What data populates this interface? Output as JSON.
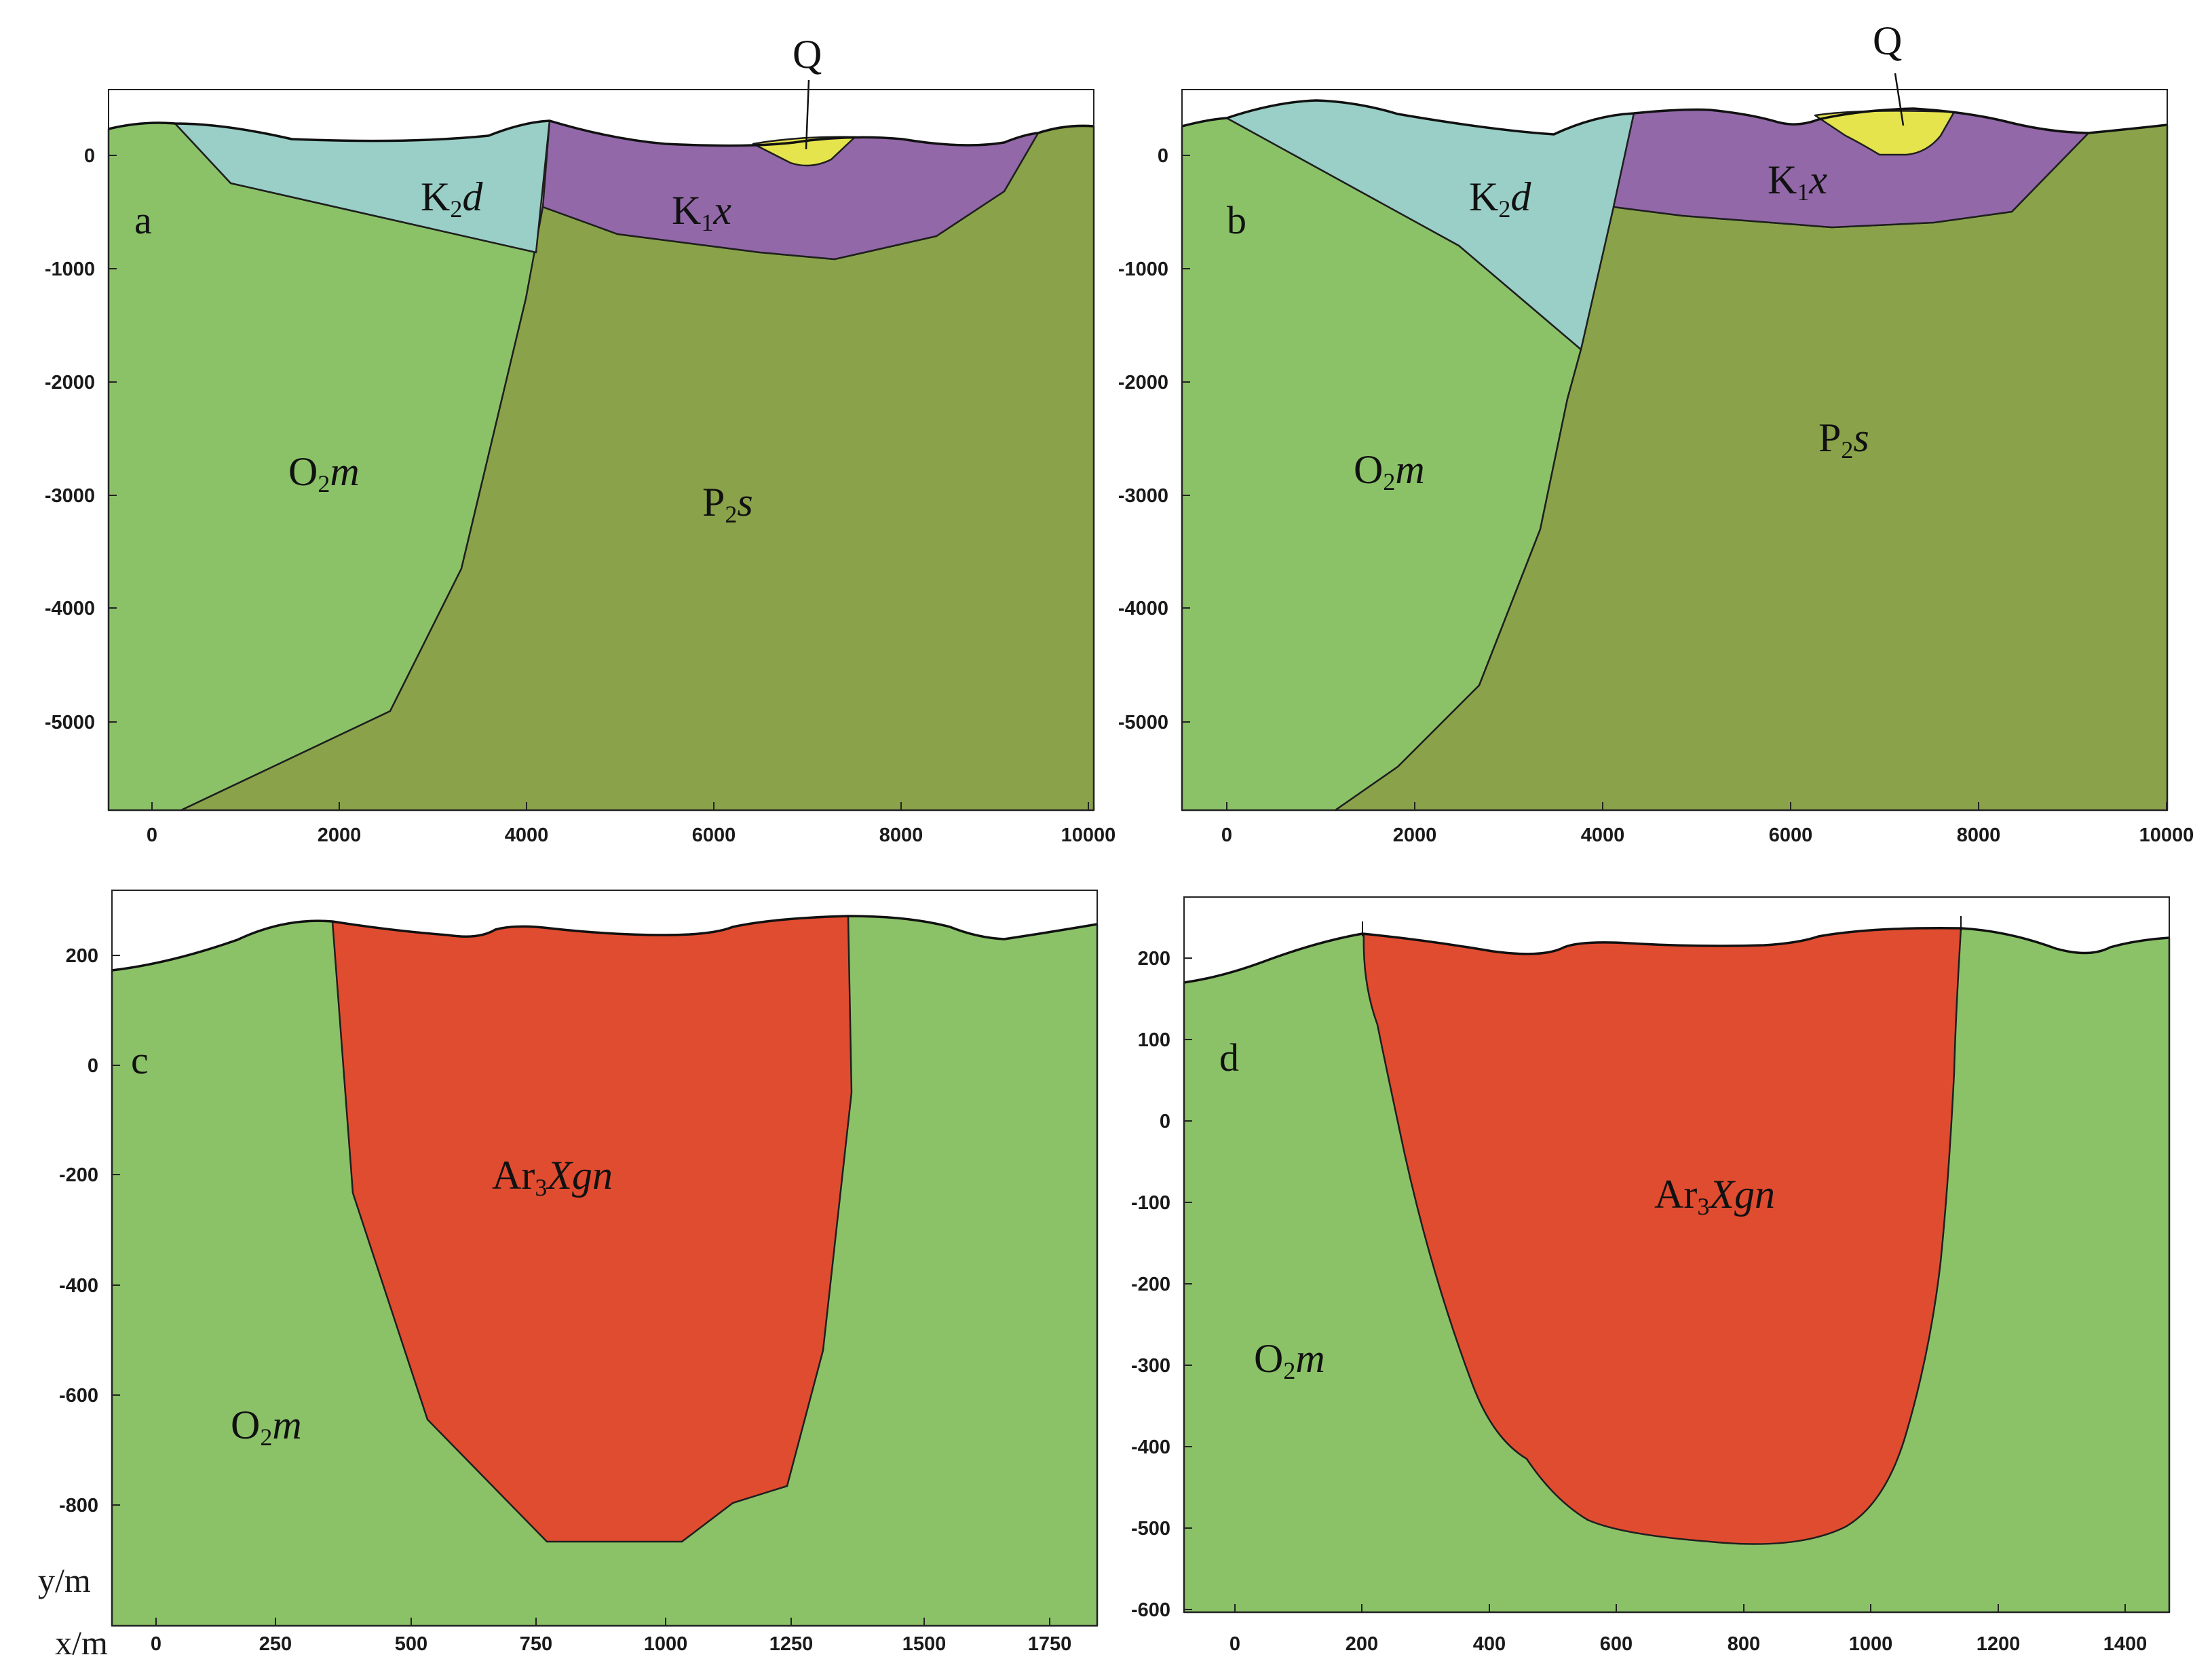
{
  "figure": {
    "colors": {
      "O2m": "#8bc268",
      "P2s": "#8aa34a",
      "K2d": "#99cfc6",
      "K1x": "#9268a8",
      "Q": "#e5e44d",
      "Ar3Xgn": "#e04c30",
      "background": "#ffffff"
    },
    "panels": [
      {
        "id": "a",
        "label": "a",
        "x_ticks": [
          "0",
          "2000",
          "4000",
          "6000",
          "8000",
          "10000"
        ],
        "y_ticks": [
          "0",
          "-1000",
          "-2000",
          "-3000",
          "-4000",
          "-5000"
        ],
        "units": {
          "O2m": {
            "main": "O",
            "sub": "2",
            "ital": "m"
          },
          "K2d": {
            "main": "K",
            "sub": "2",
            "ital": "d"
          },
          "K1x": {
            "main": "K",
            "sub": "1",
            "ital": "x"
          },
          "P2s": {
            "main": "P",
            "sub": "2",
            "ital": "s"
          },
          "Q": {
            "main": "Q"
          }
        }
      },
      {
        "id": "b",
        "label": "b",
        "x_ticks": [
          "0",
          "2000",
          "4000",
          "6000",
          "8000",
          "10000"
        ],
        "y_ticks": [
          "0",
          "-1000",
          "-2000",
          "-3000",
          "-4000",
          "-5000"
        ],
        "units": {
          "O2m": {
            "main": "O",
            "sub": "2",
            "ital": "m"
          },
          "K2d": {
            "main": "K",
            "sub": "2",
            "ital": "d"
          },
          "K1x": {
            "main": "K",
            "sub": "1",
            "ital": "x"
          },
          "P2s": {
            "main": "P",
            "sub": "2",
            "ital": "s"
          },
          "Q": {
            "main": "Q"
          }
        }
      },
      {
        "id": "c",
        "label": "c",
        "x_ticks": [
          "0",
          "250",
          "500",
          "750",
          "1000",
          "1250",
          "1500",
          "1750"
        ],
        "y_ticks": [
          "200",
          "0",
          "-200",
          "-400",
          "-600",
          "-800"
        ],
        "x_axis_label": "x/m",
        "y_axis_label": "y/m",
        "units": {
          "Ar3Xgn": {
            "main": "Ar",
            "sub": "3",
            "ital": "Xgn"
          },
          "O2m": {
            "main": "O",
            "sub": "2",
            "ital": "m"
          }
        }
      },
      {
        "id": "d",
        "label": "d",
        "x_ticks": [
          "0",
          "200",
          "400",
          "600",
          "800",
          "1000",
          "1200",
          "1400"
        ],
        "y_ticks": [
          "200",
          "100",
          "0",
          "-100",
          "-200",
          "-300",
          "-400",
          "-500",
          "-600"
        ],
        "units": {
          "Ar3Xgn": {
            "main": "Ar",
            "sub": "3",
            "ital": "Xgn"
          },
          "O2m": {
            "main": "O",
            "sub": "2",
            "ital": "m"
          }
        }
      }
    ]
  }
}
